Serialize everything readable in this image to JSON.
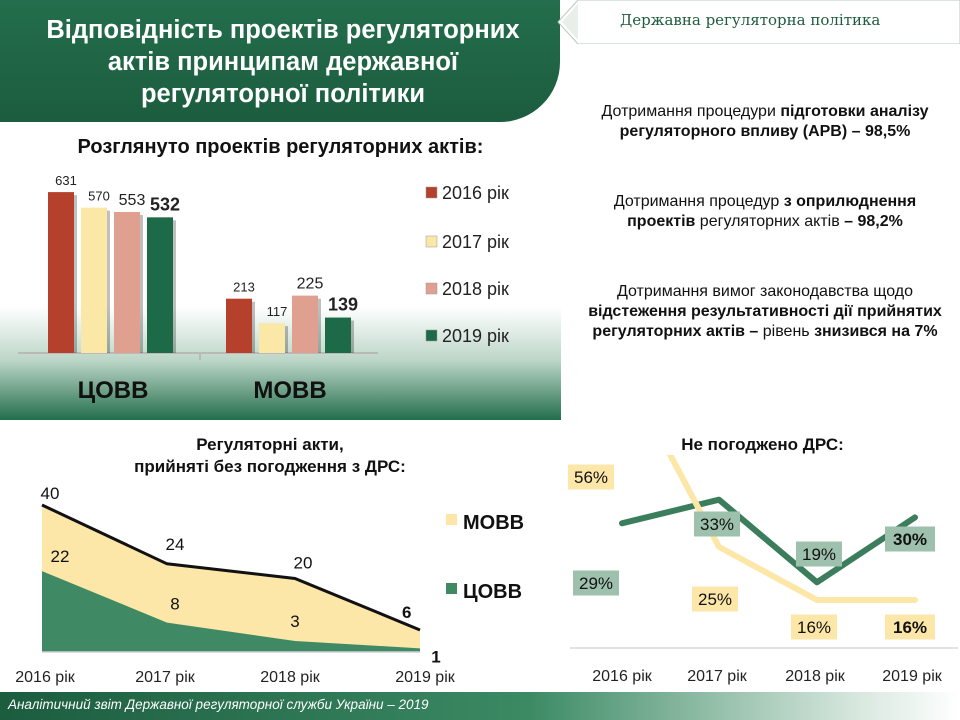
{
  "header": {
    "title_lines": [
      "Відповідність проектів регуляторних",
      "актів принципам державної",
      "регуляторної політики"
    ],
    "banner": "Державна регуляторна політика"
  },
  "right_text": {
    "block1": {
      "plain": "Дотримання процедури ",
      "bold": "підготовки аналізу регуляторного впливу (АРВ) – 98,5%"
    },
    "block2": {
      "plain1": "Дотримання процедур ",
      "bold": "з оприлюднення проектів",
      "plain2": " регуляторних актів ",
      "bold2": "– 98,2%"
    },
    "block3": {
      "plain1": "Дотримання вимог законодавства щодо ",
      "bold": "відстеження результативності дії прийнятих регуляторних актів –",
      "plain2": " рівень ",
      "bold2": "знизився на 7%"
    }
  },
  "footer": {
    "text": "Аналітичний звіт Державної регуляторної служби України – 2019"
  },
  "chart_data": [
    {
      "type": "bar",
      "title": "Розглянуто проектів регуляторних актів:",
      "categories": [
        "ЦОВВ",
        "МОВВ"
      ],
      "series": [
        {
          "name": "2016 рік",
          "values": [
            631,
            213
          ],
          "color": "#b5412c"
        },
        {
          "name": "2017 рік",
          "values": [
            570,
            117
          ],
          "color": "#fbe7a6"
        },
        {
          "name": "2018 рік",
          "values": [
            553,
            225
          ],
          "color": "#e0a090"
        },
        {
          "name": "2019 рік",
          "values": [
            532,
            139
          ],
          "color": "#1d6a48"
        }
      ],
      "ylim": [
        0,
        700
      ],
      "legend": "right"
    },
    {
      "type": "area",
      "title_lines": [
        "Регуляторні акти,",
        "прийняті без погодження з ДРС:"
      ],
      "categories": [
        "2016 рік",
        "2017 рік",
        "2018 рік",
        "2019 рік"
      ],
      "series": [
        {
          "name": "МОВВ",
          "values": [
            40,
            24,
            20,
            6
          ],
          "color": "#fde7a8"
        },
        {
          "name": "ЦОВВ",
          "values": [
            22,
            8,
            3,
            1
          ],
          "color": "#3f8a64"
        }
      ],
      "ylim": [
        0,
        40
      ],
      "legend": "right"
    },
    {
      "type": "line",
      "title": "Не погоджено ДРС:",
      "categories": [
        "2016 рік",
        "2017 рік",
        "2018 рік",
        "2019 рік"
      ],
      "series": [
        {
          "values": [
            29,
            33,
            19,
            30
          ],
          "labels": [
            "29%",
            "33%",
            "19%",
            "30%"
          ],
          "color": "#3b7d5c",
          "label_bg": "#9dc1ad"
        },
        {
          "values": [
            56,
            25,
            16,
            16
          ],
          "labels": [
            "56%",
            "25%",
            "16%",
            "16%"
          ],
          "color": "#fde7a8",
          "label_bg": "#fde7a8"
        }
      ]
    }
  ]
}
